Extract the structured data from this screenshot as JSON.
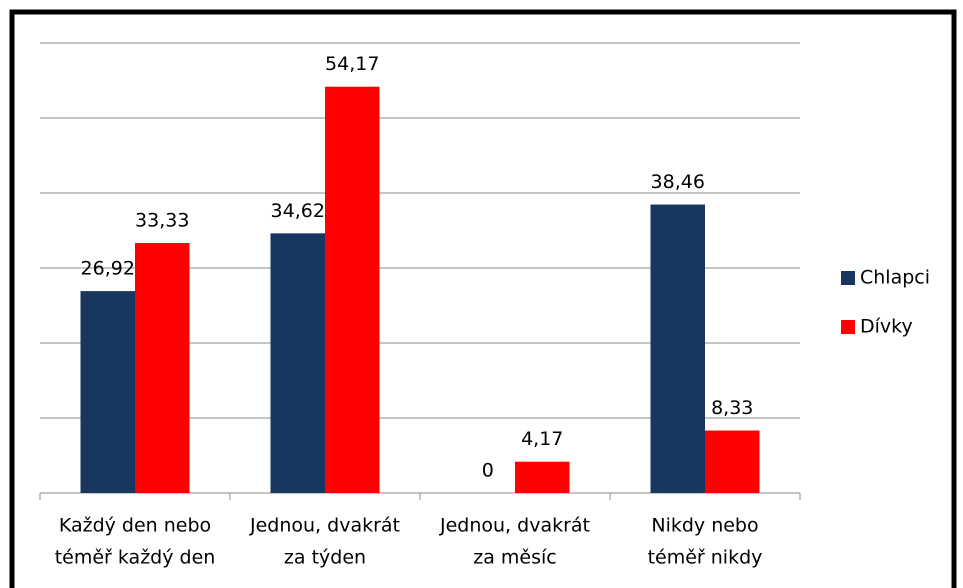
{
  "chart_data": {
    "type": "bar",
    "categories": [
      [
        "Každý den nebo",
        "téměř každý den"
      ],
      [
        "Jednou, dvakrát",
        "za týden"
      ],
      [
        "Jednou, dvakrát",
        "za měsíc"
      ],
      [
        "Nikdy nebo",
        "téměř nikdy"
      ]
    ],
    "series": [
      {
        "name": "Chlapci",
        "color": "#17375e",
        "values": [
          26.92,
          34.62,
          0,
          38.46
        ],
        "value_labels": [
          "26,92",
          "34,62",
          "0",
          "38,46"
        ]
      },
      {
        "name": "Dívky",
        "color": "#ff0000",
        "values": [
          33.33,
          54.17,
          4.17,
          8.33
        ],
        "value_labels": [
          "33,33",
          "54,17",
          "4,17",
          "8,33"
        ]
      }
    ],
    "ylim": [
      0,
      60
    ],
    "yticks": [
      0,
      10,
      20,
      30,
      40,
      50,
      60
    ],
    "grid": true,
    "legend": "right"
  }
}
